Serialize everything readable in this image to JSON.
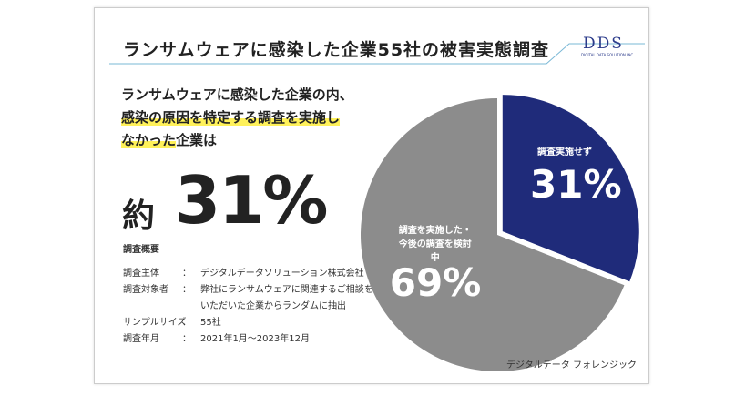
{
  "header": {
    "title": "ランサムウェアに感染した企業55社の被害実態調査",
    "logo": "DDS",
    "logo_sub": "DIGITAL DATA SOLUTION INC."
  },
  "lead": {
    "line1": "ランサムウェアに感染した企業の内、",
    "line2": "感染の原因を特定する調査を実施し",
    "line3_highlight": "なかった",
    "line3_rest": "企業は",
    "prefix": "約"
  },
  "survey": {
    "title": "調査概要",
    "rows": [
      {
        "label": "調査主体",
        "sep": "：",
        "detail": [
          "デジタルデータソリューション株式会社"
        ]
      },
      {
        "label": "調査対象者",
        "sep": "：",
        "detail": [
          "弊社にランサムウェアに関連するご相談を",
          "いただいた企業からランダムに抽出"
        ]
      },
      {
        "label": "サンプルサイズ",
        "sep": "：",
        "detail": [
          "55社"
        ]
      },
      {
        "label": "調査年月",
        "sep": "：",
        "detail": [
          "2021年1月～2023年12月"
        ]
      }
    ]
  },
  "footer": {
    "brand": "デジタルデータ フォレンジック"
  },
  "chart_data": {
    "type": "pie",
    "categories": [
      "調査実施せず",
      "調査を実施した・今後の調査を検討中"
    ],
    "values": [
      31,
      69
    ],
    "value_labels": [
      "31%",
      "69%"
    ],
    "colors": [
      "#1f2b7a",
      "#8c8c8c"
    ]
  }
}
